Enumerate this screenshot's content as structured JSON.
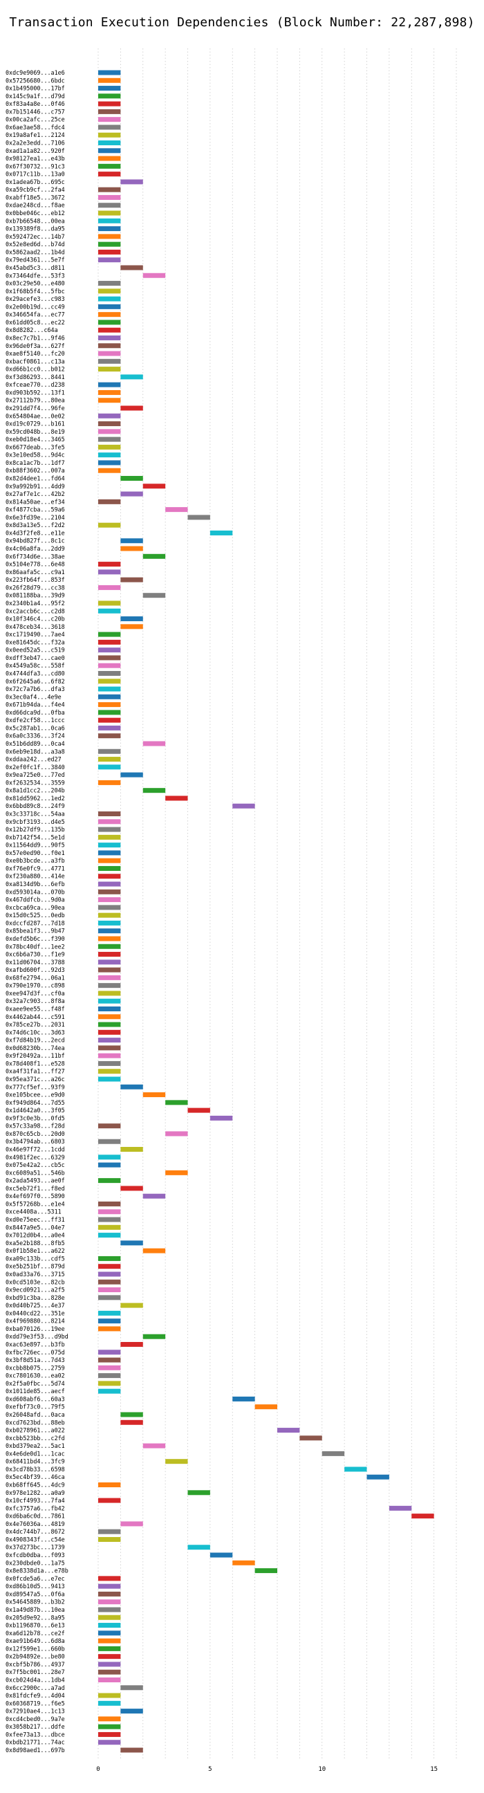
{
  "chart_data": {
    "type": "bar",
    "orientation": "horizontal",
    "title": "Transaction Execution Dependencies (Block Number: 22,287,898)",
    "xlabel": "",
    "ylabel": "",
    "xlim": [
      0,
      16
    ],
    "xticks": [
      0,
      5,
      10,
      15
    ],
    "grid": "vertical dotted",
    "palette": [
      "#1f77b4",
      "#ff7f0e",
      "#2ca02c",
      "#d62728",
      "#9467bd",
      "#8c564b",
      "#e377c2",
      "#7f7f7f",
      "#bcbd22",
      "#17becf"
    ],
    "transactions": [
      "0xdc9e9069...a1e6",
      "0x57256680...6bdc",
      "0x1b495000...17bf",
      "0x145c9a1f...d79d",
      "0xf83a4a8e...0f46",
      "0x7b151446...c757",
      "0x00ca2afc...25ce",
      "0x6ae3ae58...fdc4",
      "0x19a8afe1...2124",
      "0x2a2e3edd...7106",
      "0xad1a1a82...920f",
      "0x98127ea1...e43b",
      "0x67f30732...91c3",
      "0x0717c11b...13a0",
      "0x1adea67b...695c",
      "0xa59cb9cf...2fa4",
      "0xabff18e5...3672",
      "0xdae248cd...f8ae",
      "0x0bbe046c...eb12",
      "0xb7b66548...00ea",
      "0x139389f8...da95",
      "0x592472ec...14b7",
      "0x52e8ed6d...b74d",
      "0x5862aad2...1b4d",
      "0x79ed4361...5e7f",
      "0x45abd5c3...d811",
      "0x73464dfe...53f3",
      "0x03c29e50...e480",
      "0x1f68b5f4...5fbc",
      "0x29acefe3...c983",
      "0x2e00b19d...cc49",
      "0x346654fa...ec77",
      "0x61dd05c8...ec22",
      "0x8d8282...c64a",
      "0x8ec7c7b1...9f46",
      "0x96de0f3a...627f",
      "0xae8f5140...fc20",
      "0xbacf0861...c13a",
      "0xd66b1cc0...b012",
      "0xf3d86293...8441",
      "0xfceae770...d238",
      "0xd903b592...13f1",
      "0x27112b79...80ea",
      "0x291dd7f4...96fe",
      "0x654804ae...0e02",
      "0xd19c0729...b161",
      "0x59cd048b...8e19",
      "0xeb0d18e4...3465",
      "0x6677deab...3fe5",
      "0x3e10ed58...9d4c",
      "0x8ca1ac7b...1df7",
      "0xb88f3602...007a",
      "0x82d4dee1...fd64",
      "0x9a992b91...4dd9",
      "0x27af7e1c...42b2",
      "0x814a50ae...ef34",
      "0xf4877cba...59a6",
      "0x6e3fd39e...2104",
      "0x8d3a13e5...f2d2",
      "0x4d3f2fe8...e11e",
      "0x94bd827f...8c1c",
      "0x4c06a8fa...2dd9",
      "0x6f734d6e...38ae",
      "0x5104e778...6e48",
      "0x86aafa5c...c9a1",
      "0x223fb64f...853f",
      "0x26f28d79...cc38",
      "0x081188ba...39d9",
      "0x2340b1a4...95f2",
      "0xc2accb6c...c2d8",
      "0x10f346c4...c20b",
      "0x478ceb34...3618",
      "0xc1719490...7ae4",
      "0xe81645dc...f32a",
      "0x0eed52a5...c519",
      "0xdff3eb47...cae0",
      "0x4549a58c...558f",
      "0x4744dfa3...cd80",
      "0x6f2645a6...6f82",
      "0x72c7a7b6...dfa3",
      "0x3ec0af4...4e9e",
      "0x671b94da...f4e4",
      "0xd66dca9d...0fba",
      "0xdfe2cf58...1ccc",
      "0x5c287ab1...0ca6",
      "0x6a0c3336...3f24",
      "0x51b6dd89...0ca4",
      "0x6eb9e18d...a3a8",
      "0xddaa242...ed27",
      "0x2ef0fc1f...3840",
      "0x9ea725e0...77ed",
      "0xf2632534...3559",
      "0x8a1d1cc2...204b",
      "0x81dd5962...1ed2",
      "0x6bbd89c8...24f9",
      "0x3c33718c...54aa",
      "0x9cbf3193...d4e5",
      "0x12b27df9...135b",
      "0xb7142f54...5e1d",
      "0x11564dd9...90f5",
      "0x57e0ed90...f0e1",
      "0xe0b3bcde...a3fb",
      "0xf76e0fc9...4771",
      "0xf230a880...414e",
      "0xa8134d9b...6efb",
      "0xd593014a...070b",
      "0x467ddfcb...9d0a",
      "0xcbca69ca...90ea",
      "0x15d0c525...0edb",
      "0xdccfd287...7d18",
      "0x85bea1f3...9b47",
      "0xdefd5b6c...f390",
      "0x78bc40df...1ee2",
      "0xc6b6a730...f1e9",
      "0x11d06704...3788",
      "0xafbd600f...92d3",
      "0x68fe2794...06a1",
      "0x790e1970...c898",
      "0xee947d3f...cf0a",
      "0x32a7c903...8f8a",
      "0xaee9ee55...f48f",
      "0x4462ab44...c591",
      "0x785ce27b...2031",
      "0x74d6c10c...3d63",
      "0xf7d84b19...2ecd",
      "0x0d68230b...74ea",
      "0x9f20492a...11bf",
      "0x78d408f1...e528",
      "0xa4f31fa1...ff27",
      "0x95ea371c...a26c",
      "0x777cf5ef...93f9",
      "0xe105bcee...e9d0",
      "0xf949d864...7d55",
      "0x1d4642a0...3f05",
      "0x9f3c0e3b...0fd5",
      "0x57c33a98...f28d",
      "0x870c65cb...20d0",
      "0x3b4794ab...6803",
      "0x46e97f72...1cdd",
      "0x4981f2ec...6329",
      "0x075e42a2...cb5c",
      "0xc6089a51...546b",
      "0x2ada5493...ae0f",
      "0xc5eb72f1...f8ed",
      "0x4ef697f0...5890",
      "0x5f57268b...e1e4",
      "0xce4408a...5311",
      "0xd0e75eec...ff31",
      "0x8447a9e5...04e7",
      "0x7012d0b4...a0e4",
      "0xa5e2b188...8fb5",
      "0x0f1b58e1...a622",
      "0xa09c133b...cdf5",
      "0xe5b251bf...879d",
      "0x0ad33a76...3715",
      "0x0cd5103e...82cb",
      "0x9ecd0921...a2f5",
      "0xbd91c3ba...828e",
      "0x0d40b725...4e37",
      "0x0440cd22...351e",
      "0x4f969880...8214",
      "0xba070126...19ee",
      "0xdd79e3f53...d9bd",
      "0xac63e897...b3fb",
      "0xfbc726ec...075d",
      "0x3bf8d51a...7d43",
      "0xcbb8b075...2759",
      "0xc7801630...ea02",
      "0x2f5a0fbc...5d74",
      "0x1011de85...aecf",
      "0xd608abf6...60a3",
      "0xefbf73c0...79f5",
      "0x26048afd...0aca",
      "0xcd7623bd...88eb",
      "0xb0278961...a022",
      "0xcbb523bb...c2fd",
      "0xbd379ea2...5ac1",
      "0x4e6de0d1...1cac",
      "0x68411bd4...3fc9",
      "0x3cd78b33...6598",
      "0x5ec4bf39...46ca",
      "0xb68ff645...4dc9",
      "0x978e1282...a0a9",
      "0x10cf4993...7fa4",
      "0xfc3757a6...fb42",
      "0xd6ba6c0d...7861",
      "0x4e76036a...4819",
      "0x4dc744b7...8672",
      "0x4908343f...c54e",
      "0x37d273bc...1739",
      "0xfcdb0dba...f093",
      "0x230dbde0...1a75",
      "0x8e8338d1a...e78b",
      "0x0fcde5a6...e7ec",
      "0xd86b10d5...9413",
      "0xd89547a5...0f6a",
      "0x54645889...b3b2",
      "0x1a49d87b...10ea",
      "0x205d9e92...8a95",
      "0xb1196870...6e13",
      "0xa6d12b78...ce2f",
      "0xae91b649...6d8a",
      "0x12f599e1...660b",
      "0x2b94892e...be80",
      "0xcbf5b786...4937",
      "0x7f5bc001...28e7",
      "0xcb024d4a...1db4",
      "0x6cc2900c...a7ad",
      "0x81fdcfe9...4d04",
      "0x60368719...f6e5",
      "0x72910ae4...1c13",
      "0xcd4cbed0...9a7e",
      "0x3058b217...ddfe",
      "0xfee73a13...dbce",
      "0xbdb21771...74ac",
      "0x8d98aed1...697b"
    ],
    "bars": [
      [
        0,
        1,
        0
      ],
      [
        0,
        1,
        1
      ],
      [
        0,
        1,
        0
      ],
      [
        0,
        1,
        2
      ],
      [
        0,
        1,
        3
      ],
      [
        0,
        1,
        5
      ],
      [
        0,
        1,
        6
      ],
      [
        0,
        1,
        7
      ],
      [
        0,
        1,
        8
      ],
      [
        0,
        1,
        9
      ],
      [
        0,
        1,
        0
      ],
      [
        0,
        1,
        1
      ],
      [
        0,
        1,
        2
      ],
      [
        0,
        1,
        3
      ],
      [
        1,
        2,
        4
      ],
      [
        0,
        1,
        5
      ],
      [
        0,
        1,
        6
      ],
      [
        0,
        1,
        7
      ],
      [
        0,
        1,
        8
      ],
      [
        0,
        1,
        9
      ],
      [
        0,
        1,
        0
      ],
      [
        0,
        1,
        1
      ],
      [
        0,
        1,
        2
      ],
      [
        0,
        1,
        3
      ],
      [
        0,
        1,
        4
      ],
      [
        1,
        2,
        5
      ],
      [
        2,
        3,
        6
      ],
      [
        0,
        1,
        7
      ],
      [
        0,
        1,
        8
      ],
      [
        0,
        1,
        9
      ],
      [
        0,
        1,
        0
      ],
      [
        0,
        1,
        1
      ],
      [
        0,
        1,
        2
      ],
      [
        0,
        1,
        3
      ],
      [
        0,
        1,
        4
      ],
      [
        0,
        1,
        5
      ],
      [
        0,
        1,
        6
      ],
      [
        0,
        1,
        7
      ],
      [
        0,
        1,
        8
      ],
      [
        1,
        2,
        9
      ],
      [
        0,
        1,
        0
      ],
      [
        0,
        1,
        1
      ],
      [
        0,
        1,
        1
      ],
      [
        1,
        2,
        3
      ],
      [
        0,
        1,
        4
      ],
      [
        0,
        1,
        5
      ],
      [
        0,
        1,
        6
      ],
      [
        0,
        1,
        7
      ],
      [
        0,
        1,
        8
      ],
      [
        0,
        1,
        9
      ],
      [
        0,
        1,
        0
      ],
      [
        0,
        1,
        1
      ],
      [
        1,
        2,
        2
      ],
      [
        2,
        3,
        3
      ],
      [
        1,
        2,
        4
      ],
      [
        0,
        1,
        5
      ],
      [
        3,
        4,
        6
      ],
      [
        4,
        5,
        7
      ],
      [
        0,
        1,
        8
      ],
      [
        5,
        6,
        9
      ],
      [
        1,
        2,
        0
      ],
      [
        1,
        2,
        1
      ],
      [
        2,
        3,
        2
      ],
      [
        0,
        1,
        3
      ],
      [
        0,
        1,
        4
      ],
      [
        1,
        2,
        5
      ],
      [
        0,
        1,
        6
      ],
      [
        2,
        3,
        7
      ],
      [
        0,
        1,
        8
      ],
      [
        0,
        1,
        9
      ],
      [
        1,
        2,
        0
      ],
      [
        1,
        2,
        1
      ],
      [
        0,
        1,
        2
      ],
      [
        0,
        1,
        3
      ],
      [
        0,
        1,
        4
      ],
      [
        0,
        1,
        5
      ],
      [
        0,
        1,
        6
      ],
      [
        0,
        1,
        7
      ],
      [
        0,
        1,
        8
      ],
      [
        0,
        1,
        9
      ],
      [
        0,
        1,
        0
      ],
      [
        0,
        1,
        1
      ],
      [
        0,
        1,
        2
      ],
      [
        0,
        1,
        3
      ],
      [
        0,
        1,
        4
      ],
      [
        0,
        1,
        5
      ],
      [
        2,
        3,
        6
      ],
      [
        0,
        1,
        7
      ],
      [
        0,
        1,
        8
      ],
      [
        0,
        1,
        9
      ],
      [
        1,
        2,
        0
      ],
      [
        0,
        1,
        1
      ],
      [
        2,
        3,
        2
      ],
      [
        3,
        4,
        3
      ],
      [
        6,
        7,
        4
      ],
      [
        0,
        1,
        5
      ],
      [
        0,
        1,
        6
      ],
      [
        0,
        1,
        7
      ],
      [
        0,
        1,
        8
      ],
      [
        0,
        1,
        9
      ],
      [
        0,
        1,
        0
      ],
      [
        0,
        1,
        1
      ],
      [
        0,
        1,
        2
      ],
      [
        0,
        1,
        3
      ],
      [
        0,
        1,
        4
      ],
      [
        0,
        1,
        5
      ],
      [
        0,
        1,
        6
      ],
      [
        0,
        1,
        7
      ],
      [
        0,
        1,
        8
      ],
      [
        0,
        1,
        9
      ],
      [
        0,
        1,
        0
      ],
      [
        0,
        1,
        1
      ],
      [
        0,
        1,
        2
      ],
      [
        0,
        1,
        3
      ],
      [
        0,
        1,
        4
      ],
      [
        0,
        1,
        5
      ],
      [
        0,
        1,
        6
      ],
      [
        0,
        1,
        7
      ],
      [
        0,
        1,
        8
      ],
      [
        0,
        1,
        9
      ],
      [
        0,
        1,
        0
      ],
      [
        0,
        1,
        1
      ],
      [
        0,
        1,
        2
      ],
      [
        0,
        1,
        3
      ],
      [
        0,
        1,
        4
      ],
      [
        0,
        1,
        5
      ],
      [
        0,
        1,
        6
      ],
      [
        0,
        1,
        7
      ],
      [
        0,
        1,
        8
      ],
      [
        0,
        1,
        9
      ],
      [
        1,
        2,
        0
      ],
      [
        2,
        3,
        1
      ],
      [
        3,
        4,
        2
      ],
      [
        4,
        5,
        3
      ],
      [
        5,
        6,
        4
      ],
      [
        0,
        1,
        5
      ],
      [
        3,
        4,
        6
      ],
      [
        0,
        1,
        7
      ],
      [
        1,
        2,
        8
      ],
      [
        0,
        1,
        9
      ],
      [
        0,
        1,
        0
      ],
      [
        3,
        4,
        1
      ],
      [
        0,
        1,
        2
      ],
      [
        1,
        2,
        3
      ],
      [
        2,
        3,
        4
      ],
      [
        0,
        1,
        5
      ],
      [
        0,
        1,
        6
      ],
      [
        0,
        1,
        7
      ],
      [
        0,
        1,
        8
      ],
      [
        0,
        1,
        9
      ],
      [
        1,
        2,
        0
      ],
      [
        2,
        3,
        1
      ],
      [
        0,
        1,
        2
      ],
      [
        0,
        1,
        3
      ],
      [
        0,
        1,
        4
      ],
      [
        0,
        1,
        5
      ],
      [
        0,
        1,
        6
      ],
      [
        0,
        1,
        7
      ],
      [
        1,
        2,
        8
      ],
      [
        0,
        1,
        9
      ],
      [
        0,
        1,
        0
      ],
      [
        0,
        1,
        1
      ],
      [
        2,
        3,
        2
      ],
      [
        1,
        2,
        3
      ],
      [
        0,
        1,
        4
      ],
      [
        0,
        1,
        5
      ],
      [
        0,
        1,
        6
      ],
      [
        0,
        1,
        7
      ],
      [
        0,
        1,
        8
      ],
      [
        0,
        1,
        9
      ],
      [
        6,
        7,
        0
      ],
      [
        7,
        8,
        1
      ],
      [
        1,
        2,
        2
      ],
      [
        1,
        2,
        3
      ],
      [
        8,
        9,
        4
      ],
      [
        9,
        10,
        5
      ],
      [
        2,
        3,
        6
      ],
      [
        10,
        11,
        7
      ],
      [
        3,
        4,
        8
      ],
      [
        11,
        12,
        9
      ],
      [
        12,
        13,
        0
      ],
      [
        0,
        1,
        1
      ],
      [
        4,
        5,
        2
      ],
      [
        0,
        1,
        3
      ],
      [
        13,
        14,
        4
      ],
      [
        14,
        15,
        3
      ],
      [
        1,
        2,
        6
      ],
      [
        0,
        1,
        7
      ],
      [
        0,
        1,
        8
      ],
      [
        4,
        5,
        9
      ],
      [
        5,
        6,
        0
      ],
      [
        6,
        7,
        1
      ],
      [
        7,
        8,
        2
      ],
      [
        0,
        1,
        3
      ],
      [
        0,
        1,
        4
      ],
      [
        0,
        1,
        5
      ],
      [
        0,
        1,
        6
      ],
      [
        0,
        1,
        7
      ],
      [
        0,
        1,
        8
      ],
      [
        0,
        1,
        9
      ],
      [
        0,
        1,
        0
      ],
      [
        0,
        1,
        1
      ],
      [
        0,
        1,
        2
      ],
      [
        0,
        1,
        3
      ],
      [
        0,
        1,
        4
      ],
      [
        0,
        1,
        5
      ],
      [
        0,
        1,
        6
      ],
      [
        1,
        2,
        7
      ],
      [
        0,
        1,
        8
      ],
      [
        0,
        1,
        9
      ],
      [
        1,
        2,
        0
      ],
      [
        0,
        1,
        1
      ],
      [
        0,
        1,
        2
      ],
      [
        0,
        1,
        3
      ],
      [
        0,
        1,
        4
      ],
      [
        1,
        2,
        5
      ]
    ]
  }
}
